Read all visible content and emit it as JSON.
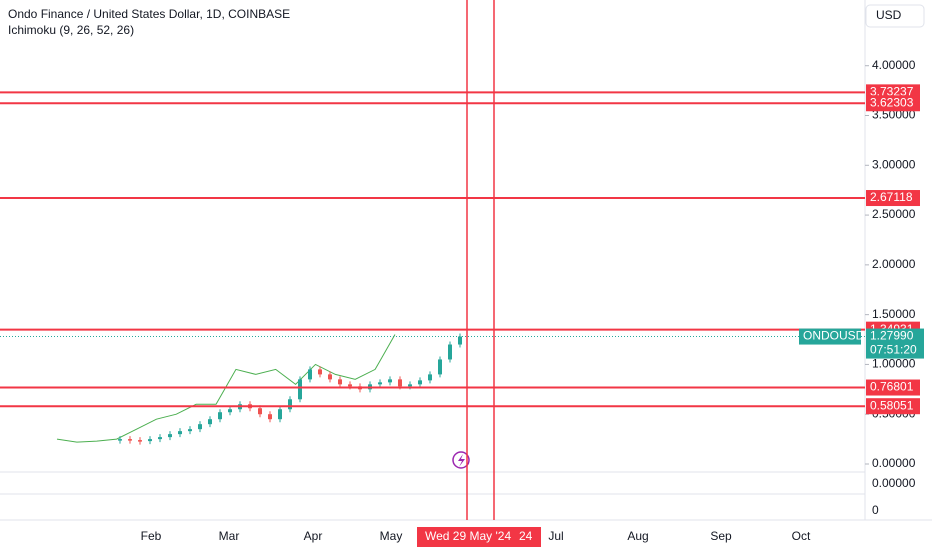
{
  "chart_data": {
    "type": "candlestick",
    "title": "Ondo Finance / United States Dollar, 1D, COINBASE",
    "indicator": "Ichimoku (9, 26, 52, 26)",
    "currency": "USD",
    "symbol": "ONDOUSD",
    "ylim": [
      0,
      4.66
    ],
    "yticks": [
      {
        "value": 0,
        "label": "0.00000"
      },
      {
        "value": 0.5,
        "label": "0.50000"
      },
      {
        "value": 1,
        "label": "1.00000"
      },
      {
        "value": 1.5,
        "label": "1.50000"
      },
      {
        "value": 2,
        "label": "2.00000"
      },
      {
        "value": 2.5,
        "label": "2.50000"
      },
      {
        "value": 3,
        "label": "3.00000"
      },
      {
        "value": 3.5,
        "label": "3.50000"
      },
      {
        "value": 4,
        "label": "4.00000"
      }
    ],
    "lower_pane_ticks": [
      {
        "value": 0,
        "label": "0.00000"
      },
      0
    ],
    "levels": [
      3.73237,
      3.62303,
      2.67118,
      1.34931,
      0.76801,
      0.58051
    ],
    "last_price": {
      "value": 1.2799,
      "label": "1.27990"
    },
    "countdown": "07:51:20",
    "months": [
      "Feb",
      "Mar",
      "Apr",
      "May",
      "Jul",
      "Aug",
      "Sep",
      "Oct"
    ],
    "crosshair_date": "Wed 29 May '24",
    "crosshair_fragment": "24",
    "closes": [
      0.25,
      0.24,
      0.23,
      0.25,
      0.27,
      0.3,
      0.33,
      0.35,
      0.4,
      0.45,
      0.52,
      0.55,
      0.6,
      0.56,
      0.5,
      0.45,
      0.55,
      0.65,
      0.85,
      0.95,
      0.9,
      0.85,
      0.8,
      0.78,
      0.75,
      0.8,
      0.82,
      0.85,
      0.78,
      0.8,
      0.84,
      0.9,
      1.05,
      1.2,
      1.28
    ],
    "lagging_span": [
      0.25,
      0.22,
      0.23,
      0.25,
      0.35,
      0.45,
      0.5,
      0.6,
      0.6,
      0.95,
      0.9,
      0.95,
      0.8,
      1.0,
      0.9,
      0.85,
      0.95,
      1.3
    ],
    "colors": {
      "up": "#26a69a",
      "down": "#ef5350",
      "level": "#f23645",
      "lagging": "#4caf50"
    }
  }
}
